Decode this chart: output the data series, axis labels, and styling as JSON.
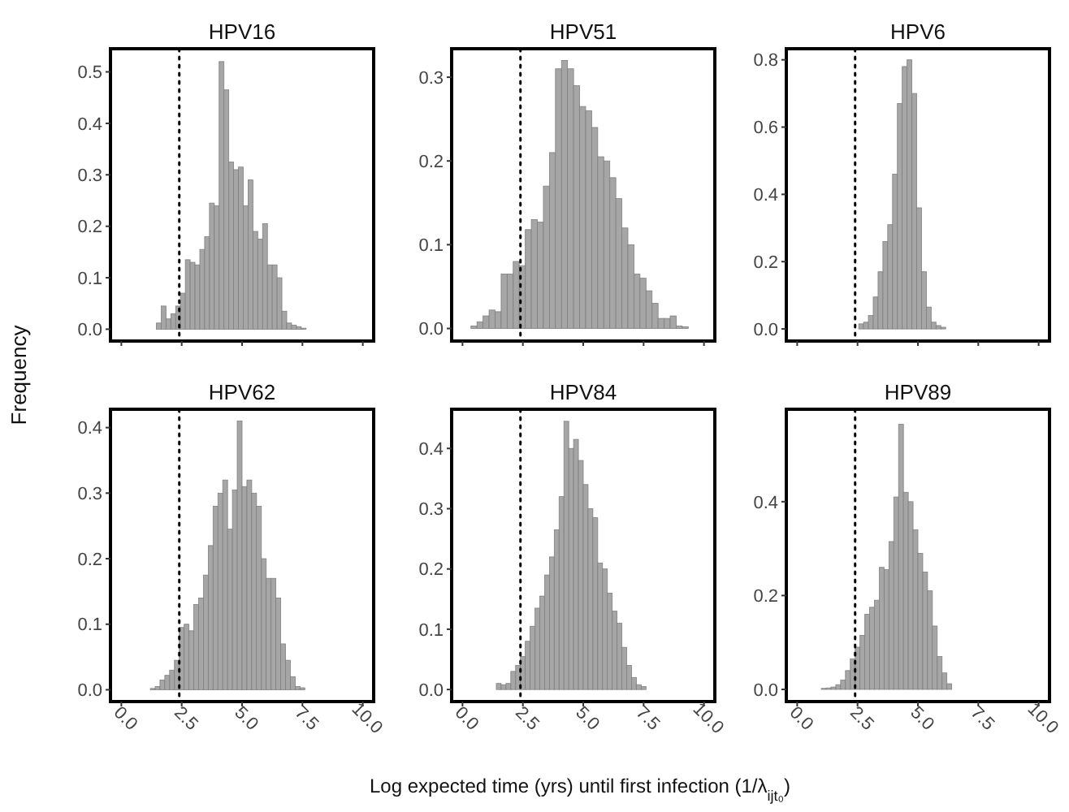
{
  "chart_data": [
    {
      "type": "histogram",
      "title": "HPV16",
      "ylabel": "Frequency",
      "bins": [
        1.45,
        1.65,
        1.85,
        2.05,
        2.25,
        2.45,
        2.65,
        2.85,
        3.05,
        3.25,
        3.45,
        3.65,
        3.85,
        4.05,
        4.25,
        4.45,
        4.65,
        4.85,
        5.05,
        5.25,
        5.45,
        5.65,
        5.85,
        6.05,
        6.25,
        6.45,
        6.65,
        6.85,
        7.05,
        7.25,
        7.45,
        7.65
      ],
      "values": [
        0.012,
        0.045,
        0.02,
        0.03,
        0.045,
        0.07,
        0.135,
        0.13,
        0.125,
        0.155,
        0.18,
        0.245,
        0.24,
        0.52,
        0.465,
        0.325,
        0.31,
        0.315,
        0.24,
        0.29,
        0.19,
        0.175,
        0.205,
        0.125,
        0.125,
        0.1,
        0.035,
        0.012,
        0.008,
        0.005,
        0.002
      ],
      "color": "#a6a6a6",
      "xlim": [
        -0.45,
        10.45
      ],
      "ylim": [
        -0.023,
        0.545
      ],
      "xticks": [
        {
          "value": 0,
          "label": null
        },
        {
          "value": 2.5,
          "label": null
        },
        {
          "value": 5,
          "label": null
        },
        {
          "value": 7.5,
          "label": null
        },
        {
          "value": 10,
          "label": null
        }
      ],
      "yticks": [
        {
          "value": 0,
          "label": "0.0"
        },
        0.1,
        0.2,
        0.3,
        0.4,
        0.5
      ],
      "tick_labels": "y",
      "ref_lines": [
        {
          "axis": "x",
          "value": 2.4,
          "color": "#000000",
          "line_style": "dotted"
        }
      ]
    },
    {
      "type": "histogram",
      "title": "HPV51",
      "bins": [
        0.35,
        0.6,
        0.85,
        1.1,
        1.35,
        1.6,
        1.85,
        2.1,
        2.35,
        2.6,
        2.85,
        3.1,
        3.35,
        3.6,
        3.85,
        4.1,
        4.35,
        4.6,
        4.85,
        5.1,
        5.35,
        5.6,
        5.85,
        6.1,
        6.35,
        6.6,
        6.85,
        7.1,
        7.35,
        7.6,
        7.85,
        8.1,
        8.35,
        8.6,
        8.85,
        9.1,
        9.35
      ],
      "values": [
        0.003,
        0.008,
        0.015,
        0.022,
        0.02,
        0.065,
        0.065,
        0.08,
        0.075,
        0.118,
        0.13,
        0.127,
        0.17,
        0.21,
        0.31,
        0.32,
        0.31,
        0.29,
        0.265,
        0.26,
        0.24,
        0.205,
        0.2,
        0.18,
        0.155,
        0.12,
        0.1,
        0.065,
        0.06,
        0.045,
        0.03,
        0.012,
        0.012,
        0.015,
        0.003,
        0.002
      ],
      "color": "#a6a6a6",
      "xlim": [
        -0.45,
        10.45
      ],
      "ylim": [
        -0.015,
        0.334
      ],
      "xticks": [
        {
          "value": 0,
          "label": null
        },
        {
          "value": 2.5,
          "label": null
        },
        {
          "value": 5,
          "label": null
        },
        {
          "value": 7.5,
          "label": null
        },
        {
          "value": 10,
          "label": null
        }
      ],
      "yticks": [
        {
          "value": 0,
          "label": "0.0"
        },
        0.1,
        0.2,
        0.3
      ],
      "tick_labels": "y",
      "ref_lines": [
        {
          "axis": "x",
          "value": 2.4,
          "color": "#000000",
          "line_style": "dotted"
        }
      ]
    },
    {
      "type": "histogram",
      "title": "HPV6",
      "bins": [
        2.55,
        2.75,
        2.95,
        3.15,
        3.35,
        3.55,
        3.75,
        3.95,
        4.15,
        4.35,
        4.55,
        4.75,
        4.95,
        5.15,
        5.35,
        5.55,
        5.75,
        5.95,
        6.15
      ],
      "values": [
        0.015,
        0.02,
        0.04,
        0.095,
        0.17,
        0.26,
        0.31,
        0.46,
        0.67,
        0.78,
        0.8,
        0.7,
        0.36,
        0.17,
        0.065,
        0.02,
        0.01,
        0.005
      ],
      "color": "#a6a6a6",
      "xlim": [
        -0.45,
        10.45
      ],
      "ylim": [
        -0.036,
        0.833
      ],
      "xticks": [
        {
          "value": 0,
          "label": null
        },
        {
          "value": 2.5,
          "label": null
        },
        {
          "value": 5,
          "label": null
        },
        {
          "value": 7.5,
          "label": null
        },
        {
          "value": 10,
          "label": null
        }
      ],
      "yticks": [
        {
          "value": 0,
          "label": "0.0"
        },
        {
          "value": 0.2,
          "label": "0.2"
        },
        {
          "value": 0.4,
          "label": "0.4"
        },
        {
          "value": 0.6,
          "label": "0.6"
        },
        {
          "value": 0.8,
          "label": "0.8"
        }
      ],
      "tick_labels": "y",
      "ref_lines": [
        {
          "axis": "x",
          "value": 2.4,
          "color": "#000000",
          "line_style": "dotted"
        }
      ]
    },
    {
      "type": "histogram",
      "title": "HPV62",
      "bins": [
        1.2,
        1.4,
        1.6,
        1.8,
        2.0,
        2.2,
        2.4,
        2.6,
        2.8,
        3.0,
        3.2,
        3.4,
        3.6,
        3.8,
        4.0,
        4.2,
        4.4,
        4.6,
        4.8,
        5.0,
        5.2,
        5.4,
        5.6,
        5.8,
        6.0,
        6.2,
        6.4,
        6.6,
        6.8,
        7.0,
        7.2,
        7.4,
        7.6
      ],
      "values": [
        0.002,
        0.005,
        0.015,
        0.022,
        0.03,
        0.045,
        0.095,
        0.1,
        0.09,
        0.13,
        0.14,
        0.175,
        0.22,
        0.28,
        0.3,
        0.32,
        0.245,
        0.305,
        0.41,
        0.31,
        0.32,
        0.3,
        0.28,
        0.2,
        0.17,
        0.17,
        0.14,
        0.07,
        0.045,
        0.02,
        0.005,
        0.003
      ],
      "color": "#a6a6a6",
      "xlim": [
        -0.45,
        10.45
      ],
      "ylim": [
        -0.018,
        0.428
      ],
      "xticks": [
        {
          "value": 0,
          "label": "0.0"
        },
        {
          "value": 2.5,
          "label": "2.5"
        },
        {
          "value": 5,
          "label": "5.0"
        },
        {
          "value": 7.5,
          "label": "7.5"
        },
        {
          "value": 10,
          "label": "10.0"
        }
      ],
      "yticks": [
        {
          "value": 0,
          "label": "0.0"
        },
        0.1,
        0.2,
        0.3,
        0.4
      ],
      "ref_lines": [
        {
          "axis": "x",
          "value": 2.4,
          "color": "#000000",
          "line_style": "dotted"
        }
      ]
    },
    {
      "type": "histogram",
      "title": "HPV84",
      "xlabel": "Log expected time (yrs) until first infection (1/λ$_{ijt₀}$)",
      "bins": [
        1.4,
        1.6,
        1.8,
        2.0,
        2.2,
        2.4,
        2.6,
        2.8,
        3.0,
        3.2,
        3.4,
        3.6,
        3.8,
        4.0,
        4.2,
        4.4,
        4.6,
        4.8,
        5.0,
        5.2,
        5.4,
        5.6,
        5.8,
        6.0,
        6.2,
        6.4,
        6.6,
        6.8,
        7.0,
        7.2,
        7.4,
        7.6
      ],
      "values": [
        0.01,
        0.008,
        0.01,
        0.03,
        0.04,
        0.055,
        0.08,
        0.105,
        0.135,
        0.155,
        0.19,
        0.22,
        0.265,
        0.32,
        0.445,
        0.4,
        0.415,
        0.38,
        0.34,
        0.3,
        0.285,
        0.21,
        0.2,
        0.16,
        0.13,
        0.11,
        0.07,
        0.04,
        0.02,
        0.008,
        0.005
      ],
      "color": "#a6a6a6",
      "xlim": [
        -0.45,
        10.45
      ],
      "ylim": [
        -0.02,
        0.465
      ],
      "xticks": [
        {
          "value": 0,
          "label": "0.0"
        },
        {
          "value": 2.5,
          "label": "2.5"
        },
        {
          "value": 5,
          "label": "5.0"
        },
        {
          "value": 7.5,
          "label": "7.5"
        },
        {
          "value": 10,
          "label": "10.0"
        }
      ],
      "yticks": [
        {
          "value": 0,
          "label": "0.0"
        },
        0.1,
        0.2,
        0.3,
        0.4
      ],
      "ref_lines": [
        {
          "axis": "x",
          "value": 2.4,
          "color": "#000000",
          "line_style": "dotted"
        }
      ]
    },
    {
      "type": "histogram",
      "title": "HPV89",
      "bins": [
        1.0,
        1.2,
        1.4,
        1.6,
        1.8,
        2.0,
        2.2,
        2.4,
        2.6,
        2.8,
        3.0,
        3.2,
        3.4,
        3.6,
        3.8,
        4.0,
        4.2,
        4.4,
        4.6,
        4.8,
        5.0,
        5.2,
        5.4,
        5.6,
        5.8,
        6.0,
        6.2,
        6.4
      ],
      "values": [
        0.002,
        0.003,
        0.005,
        0.01,
        0.02,
        0.04,
        0.065,
        0.09,
        0.115,
        0.16,
        0.175,
        0.19,
        0.26,
        0.255,
        0.315,
        0.41,
        0.565,
        0.42,
        0.4,
        0.34,
        0.29,
        0.25,
        0.21,
        0.135,
        0.07,
        0.035,
        0.012
      ],
      "color": "#a6a6a6",
      "xlim": [
        -0.45,
        10.45
      ],
      "ylim": [
        -0.026,
        0.597
      ],
      "xticks": [
        {
          "value": 0,
          "label": "0.0"
        },
        {
          "value": 2.5,
          "label": "2.5"
        },
        {
          "value": 5,
          "label": "5.0"
        },
        {
          "value": 7.5,
          "label": "7.5"
        },
        {
          "value": 10,
          "label": "10.0"
        }
      ],
      "yticks": [
        {
          "value": 0,
          "label": "0.0"
        },
        0.2,
        0.4
      ],
      "ref_lines": [
        {
          "axis": "x",
          "value": 2.4,
          "color": "#000000",
          "line_style": "dotted"
        }
      ]
    }
  ]
}
